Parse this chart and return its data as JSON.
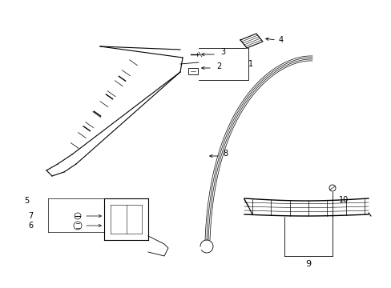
{
  "bg_color": "#ffffff",
  "line_color": "#000000",
  "label_color": "#000000",
  "figsize": [
    4.89,
    3.6
  ],
  "dpi": 100,
  "xlim": [
    0,
    489
  ],
  "ylim": [
    0,
    360
  ]
}
